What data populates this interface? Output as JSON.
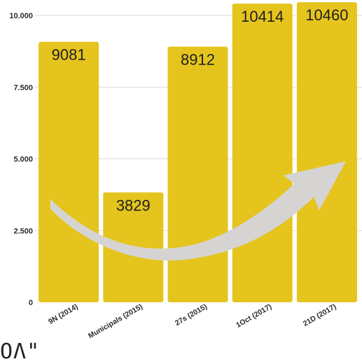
{
  "chart_data": {
    "type": "bar",
    "title": "",
    "xlabel": "",
    "ylabel": "",
    "categories": [
      "9N (2014)",
      "Municipals (2015)",
      "27s (2015)",
      "1Oct (2017)",
      "21D (2017)"
    ],
    "values": [
      9081,
      3829,
      8912,
      10414,
      10460
    ],
    "data_labels": [
      "9081",
      "3829",
      "8912",
      "10414",
      "10460"
    ],
    "yticks": [
      {
        "value": 0,
        "label": "0"
      },
      {
        "value": 2500,
        "label": "2.500"
      },
      {
        "value": 5000,
        "label": "5.000"
      },
      {
        "value": 7500,
        "label": "7.500"
      },
      {
        "value": 10000,
        "label": "10.000"
      }
    ],
    "ylim": [
      0,
      10000
    ],
    "grid": true,
    "legend": "none",
    "colors": {
      "bar": "#E5C41E",
      "grid": "#d9d9d9",
      "arrow": "#d6d4d2"
    },
    "annotation": "curved-arrow-rising"
  },
  "cut_off_text": "ΟΛ\""
}
